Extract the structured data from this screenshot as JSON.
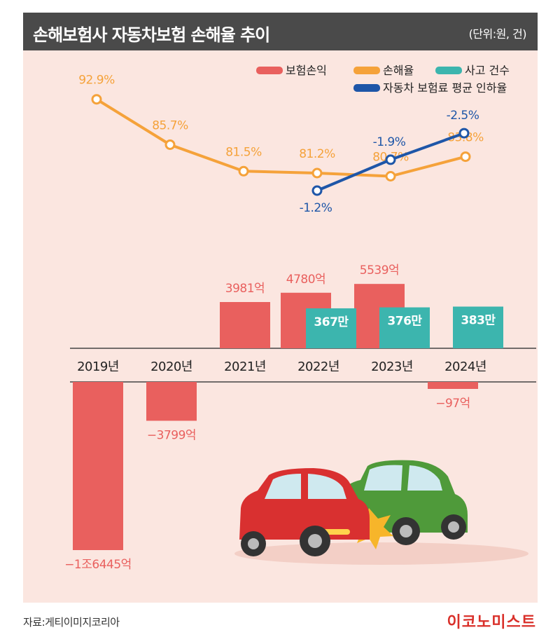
{
  "header": {
    "title": "손해보험사 자동차보험 손해율 추이",
    "unit": "(단위:원, 건)"
  },
  "footer": {
    "source": "자료:게티이미지코리아",
    "brand": "이코노미스트"
  },
  "legend": {
    "profit": "보험손익",
    "loss_ratio": "손해율",
    "accidents": "사고 건수",
    "premium_cut": "자동차 보험료 평균 인하율"
  },
  "colors": {
    "profit": "#e9605e",
    "loss_ratio": "#f5a23a",
    "accidents": "#3cb5ae",
    "premium_cut": "#1e56a8",
    "title_bar": "#4a4a4a",
    "panel": "#fbe6e0"
  },
  "chart_data": {
    "type": "bar",
    "categories": [
      "2019년",
      "2020년",
      "2021년",
      "2022년",
      "2023년",
      "2024년"
    ],
    "series": [
      {
        "name": "보험손익",
        "kind": "bar",
        "unit": "억",
        "values": [
          -16445,
          -3799,
          3981,
          4780,
          5539,
          -97
        ],
        "labels": [
          "−1조6445억",
          "−3799억",
          "3981억",
          "4780억",
          "5539억",
          "−97억"
        ]
      },
      {
        "name": "사고 건수",
        "kind": "bar",
        "unit": "만",
        "values": [
          null,
          null,
          null,
          367,
          376,
          383
        ],
        "labels": [
          null,
          null,
          null,
          "367만",
          "376만",
          "383만"
        ]
      },
      {
        "name": "손해율",
        "kind": "line",
        "unit": "%",
        "values": [
          92.9,
          85.7,
          81.5,
          81.2,
          80.7,
          83.8
        ],
        "labels": [
          "92.9%",
          "85.7%",
          "81.5%",
          "81.2%",
          "80.7%",
          "83.8%"
        ]
      },
      {
        "name": "자동차 보험료 평균 인하율",
        "kind": "line",
        "unit": "%",
        "values": [
          null,
          null,
          null,
          -1.2,
          -1.9,
          -2.5
        ],
        "labels": [
          null,
          null,
          null,
          "-1.2%",
          "-1.9%",
          "-2.5%"
        ]
      }
    ]
  }
}
